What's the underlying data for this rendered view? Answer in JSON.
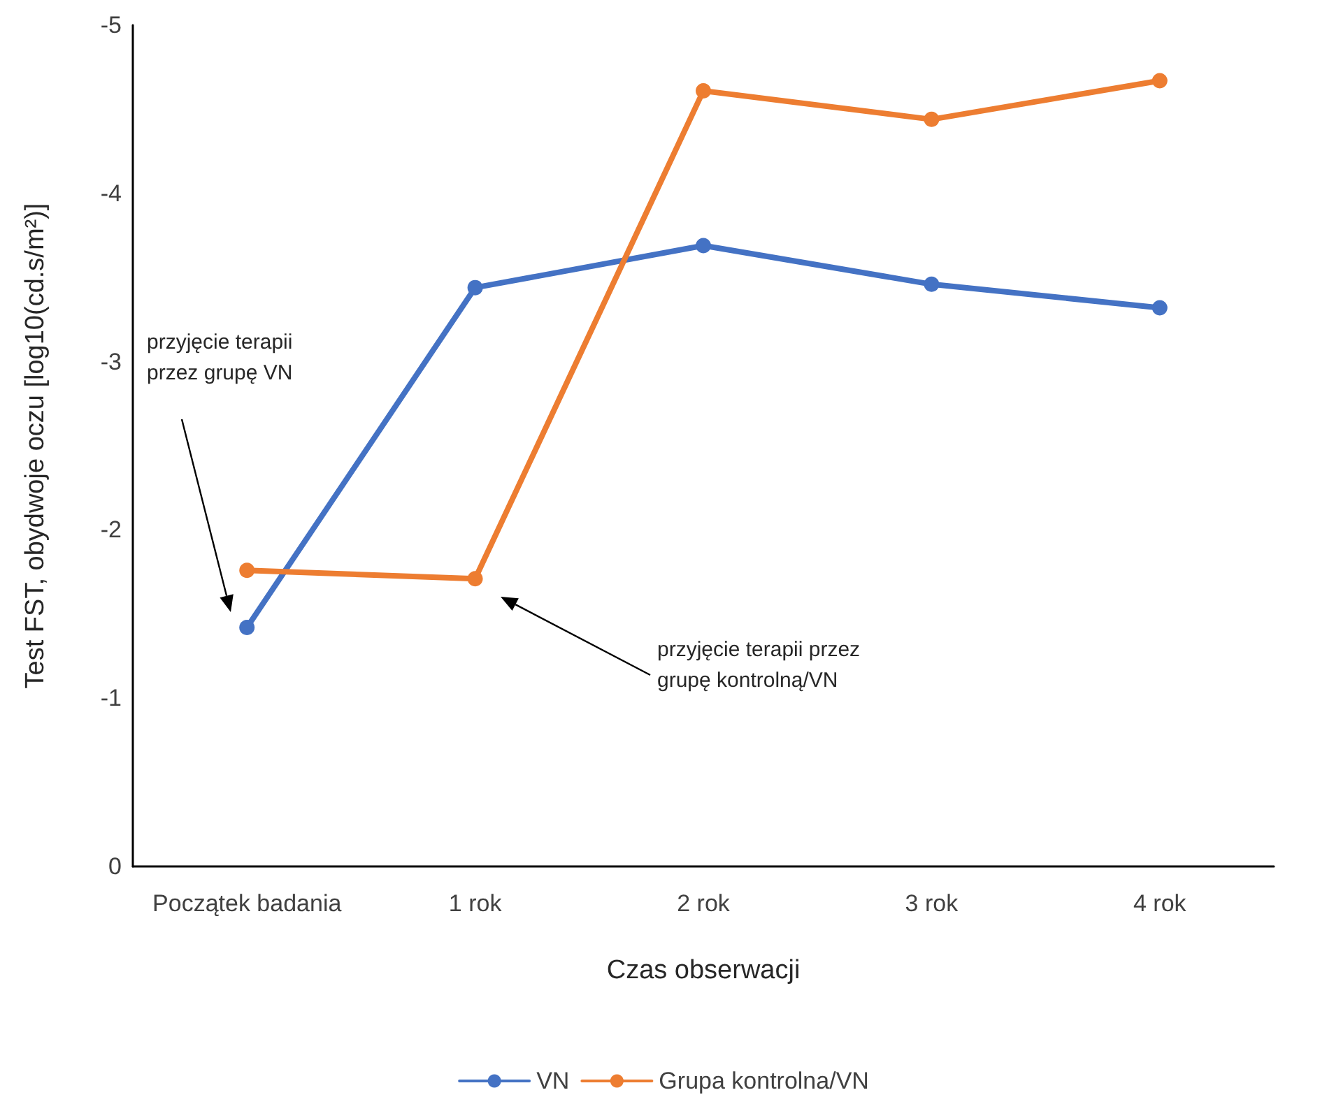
{
  "chart_data": {
    "type": "line",
    "xlabel": "Czas obserwacji",
    "ylabel": "Test FST, obydwoje oczu [log10(cd.s/m²)]",
    "categories": [
      "Początek badania",
      "1 rok",
      "2 rok",
      "3 rok",
      "4 rok"
    ],
    "series": [
      {
        "name": "VN",
        "color": "#4472c4",
        "values": [
          -1.42,
          -3.44,
          -3.69,
          -3.46,
          -3.32
        ]
      },
      {
        "name": "Grupa kontrolna/VN",
        "color": "#ed7d31",
        "values": [
          -1.76,
          -1.71,
          -4.61,
          -4.44,
          -4.67
        ]
      }
    ],
    "ylim": [
      0,
      -5
    ],
    "yticks": [
      0,
      -1,
      -2,
      -3,
      -4,
      -5
    ],
    "grid": false,
    "legend": "bottom",
    "marker": "circle",
    "line_style": "solid",
    "annotations": [
      "przyjęcie terapii\nprzez grupę VN",
      "przyjęcie terapii przez\ngrupę kontrolną/VN"
    ]
  }
}
